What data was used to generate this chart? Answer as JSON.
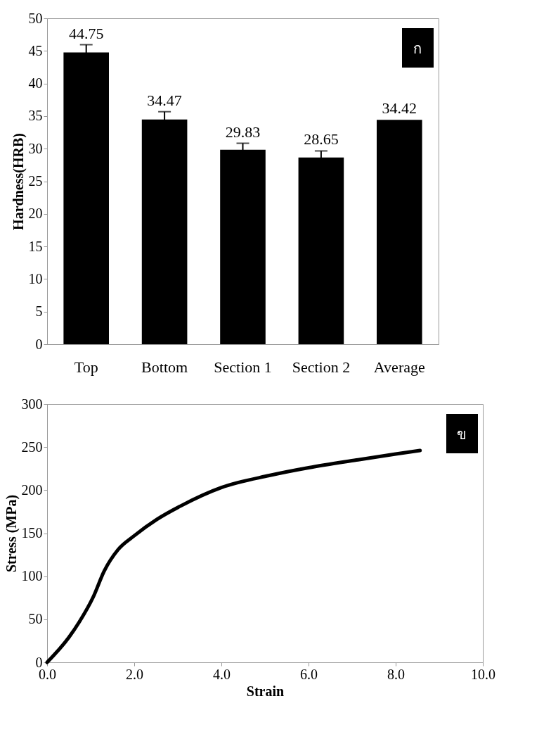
{
  "chart_data": [
    {
      "type": "bar",
      "ylabel": "Hardness(HRB)",
      "categories": [
        "Top",
        "Bottom",
        "Section 1",
        "Section 2",
        "Average"
      ],
      "values": [
        44.75,
        34.47,
        29.83,
        28.65,
        34.42
      ],
      "errors": [
        1.2,
        1.2,
        1.0,
        1.0,
        null
      ],
      "color": "#000000",
      "data_labels": true,
      "ylim": [
        0,
        50
      ],
      "yticks": [
        0,
        5,
        10,
        15,
        20,
        25,
        30,
        35,
        40,
        45,
        50
      ],
      "grid": false,
      "annotations": [
        "ก"
      ]
    },
    {
      "type": "line",
      "xlabel": "Strain",
      "ylabel": "Stress (MPa)",
      "x": [
        0,
        0.5,
        0.74,
        1.06,
        1.31,
        1.63,
        2.0,
        2.52,
        3.08,
        4.0,
        5.1,
        6.0,
        7.1,
        8.0,
        8.56
      ],
      "values": [
        0,
        29,
        47,
        76,
        106,
        131,
        147,
        166,
        182,
        203,
        217,
        226,
        235,
        242,
        246
      ],
      "color": "#000000",
      "marker": "none",
      "line_style": "solid",
      "xlim": [
        0,
        10
      ],
      "xticks": [
        {
          "value": 0,
          "label": "0.0"
        },
        {
          "value": 2,
          "label": "2.0"
        },
        {
          "value": 4,
          "label": "4.0"
        },
        {
          "value": 6,
          "label": "6.0"
        },
        {
          "value": 8,
          "label": "8.0"
        },
        {
          "value": 10,
          "label": "10.0"
        }
      ],
      "ylim": [
        0,
        300
      ],
      "yticks": [
        0,
        50,
        100,
        150,
        200,
        250,
        300
      ],
      "grid": false,
      "annotations": [
        "ข"
      ]
    }
  ]
}
